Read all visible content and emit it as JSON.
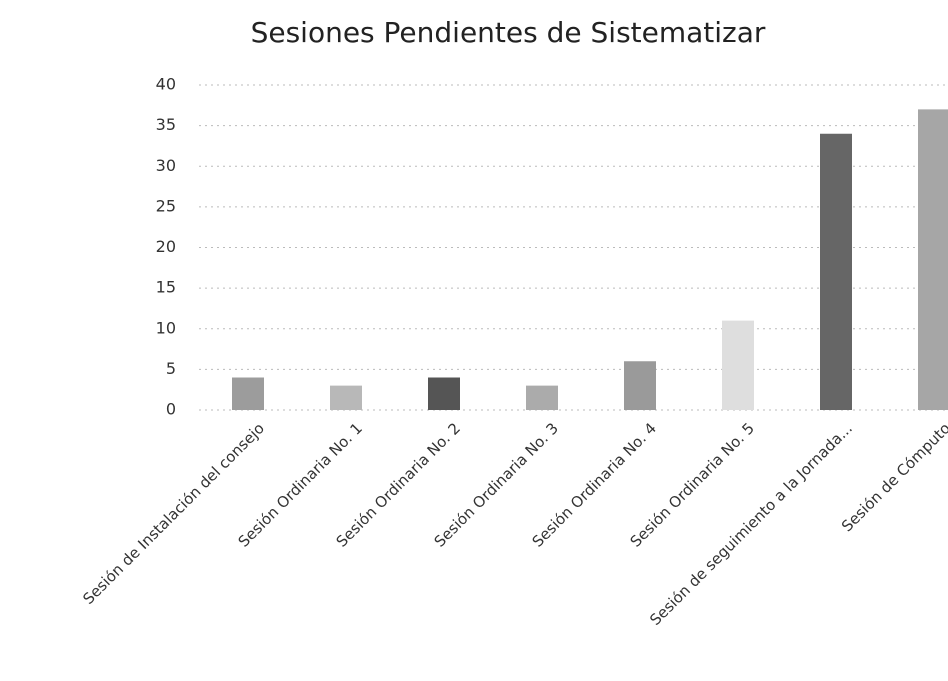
{
  "chart_data": {
    "type": "bar",
    "title": "Sesiones Pendientes de Sistematizar",
    "categories": [
      "Sesión de Instalación del consejo",
      "Sesión Ordinaria No. 1",
      "Sesión Ordinaria No. 2",
      "Sesión Ordinaria No. 3",
      "Sesión Ordinaria No. 4",
      "Sesión Ordinaria No. 5",
      "Sesión de seguimiento a la Jornada...",
      "Sesión de Cómputo"
    ],
    "values": [
      4,
      3,
      4,
      3,
      6,
      11,
      34,
      37
    ],
    "colors": [
      "#9c9c9c",
      "#b8b8b8",
      "#555555",
      "#ababab",
      "#9a9a9a",
      "#dedede",
      "#666666",
      "#a6a6a6"
    ],
    "ylim": [
      0,
      40
    ],
    "yticks": [
      0,
      5,
      10,
      15,
      20,
      25,
      30,
      35,
      40
    ],
    "grid": true
  }
}
